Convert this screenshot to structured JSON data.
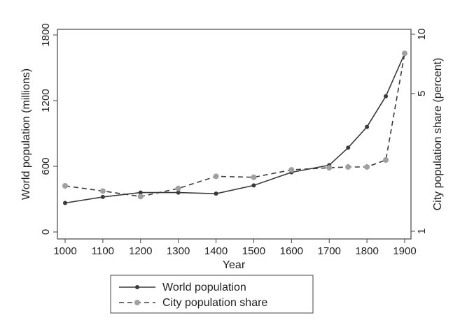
{
  "chart_data": {
    "type": "line",
    "title": "",
    "xlabel": "Year",
    "ylabel_left": "World population (millions)",
    "ylabel_right": "City population share (percent)",
    "x": [
      1000,
      1100,
      1200,
      1300,
      1400,
      1500,
      1600,
      1700,
      1750,
      1800,
      1850,
      1900
    ],
    "xticks": [
      1000,
      1100,
      1200,
      1300,
      1400,
      1500,
      1600,
      1700,
      1800,
      1900
    ],
    "xlim": [
      1000,
      1900
    ],
    "ylim_left": [
      0,
      1800
    ],
    "yticks_left": [
      0,
      600,
      1200,
      1800
    ],
    "ylim_right": [
      1,
      10
    ],
    "yticks_right": [
      1,
      5,
      10
    ],
    "right_axis_scale": "log",
    "grid": false,
    "legend": "bottom-center, outside plot",
    "series": [
      {
        "name": "World population",
        "axis": "left",
        "style": "solid",
        "color": "#3a3a3a",
        "values": [
          265,
          320,
          360,
          360,
          350,
          425,
          545,
          610,
          770,
          960,
          1240,
          1630
        ]
      },
      {
        "name": "City population share",
        "axis": "right",
        "style": "dashed",
        "color": "#a0a0a0",
        "values": [
          1.7,
          1.6,
          1.5,
          1.65,
          1.9,
          1.88,
          2.05,
          2.1,
          2.12,
          2.12,
          2.3,
          8.0
        ]
      }
    ]
  }
}
